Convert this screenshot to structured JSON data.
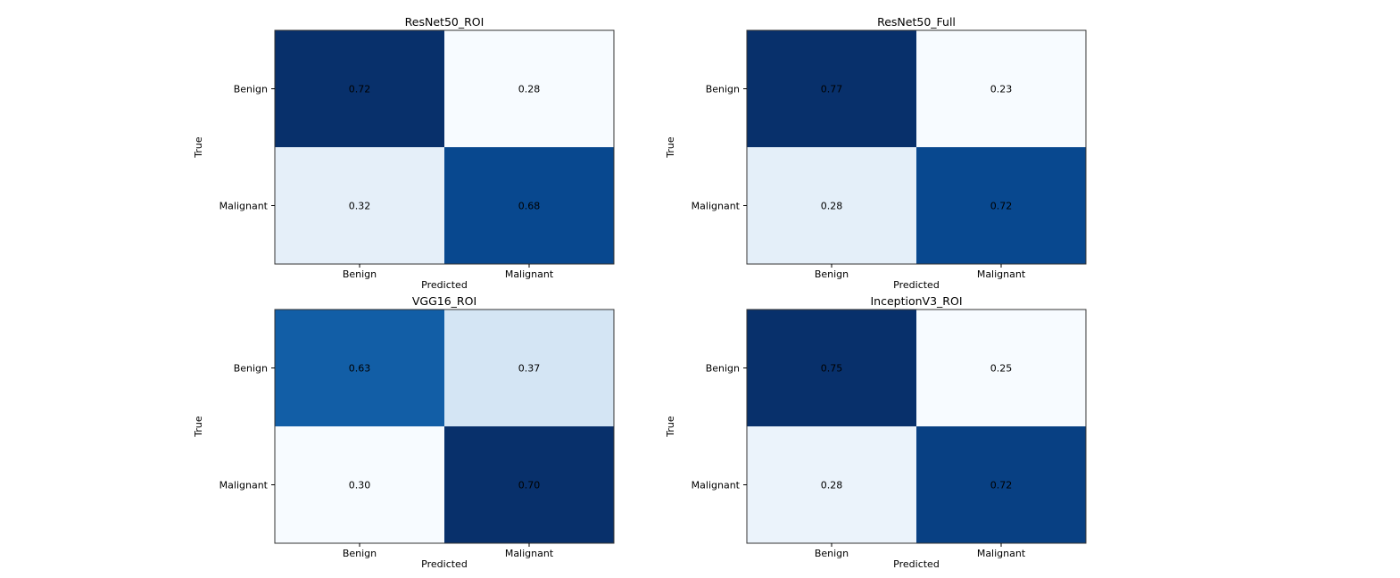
{
  "chart_data": [
    {
      "type": "heatmap",
      "title": "ResNet50_ROI",
      "xlabel": "Predicted",
      "ylabel": "True",
      "x_categories": [
        "Benign",
        "Malignant"
      ],
      "y_categories": [
        "Benign",
        "Malignant"
      ],
      "values": [
        [
          "0.72",
          "0.28"
        ],
        [
          "0.32",
          "0.68"
        ]
      ],
      "colormap": "Blues"
    },
    {
      "type": "heatmap",
      "title": "ResNet50_Full",
      "xlabel": "Predicted",
      "ylabel": "True",
      "x_categories": [
        "Benign",
        "Malignant"
      ],
      "y_categories": [
        "Benign",
        "Malignant"
      ],
      "values": [
        [
          "0.77",
          "0.23"
        ],
        [
          "0.28",
          "0.72"
        ]
      ],
      "colormap": "Blues"
    },
    {
      "type": "heatmap",
      "title": "VGG16_ROI",
      "xlabel": "Predicted",
      "ylabel": "True",
      "x_categories": [
        "Benign",
        "Malignant"
      ],
      "y_categories": [
        "Benign",
        "Malignant"
      ],
      "values": [
        [
          "0.63",
          "0.37"
        ],
        [
          "0.30",
          "0.70"
        ]
      ],
      "colormap": "Blues"
    },
    {
      "type": "heatmap",
      "title": "InceptionV3_ROI",
      "xlabel": "Predicted",
      "ylabel": "True",
      "x_categories": [
        "Benign",
        "Malignant"
      ],
      "y_categories": [
        "Benign",
        "Malignant"
      ],
      "values": [
        [
          "0.75",
          "0.25"
        ],
        [
          "0.28",
          "0.72"
        ]
      ],
      "colormap": "Blues"
    }
  ]
}
